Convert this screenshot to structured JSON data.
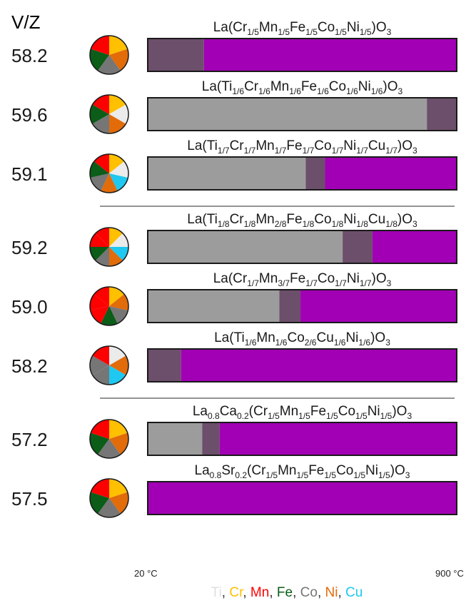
{
  "header": {
    "vz_label": "V/Z"
  },
  "element_colors": {
    "Ti": "#ebebeb",
    "Cr": "#ffc000",
    "Mn": "#ff0000",
    "Fe": "#0b5d18",
    "Co": "#767676",
    "Ni": "#e26b0a",
    "Cu": "#1ec8f0"
  },
  "phase_colors": [
    "#9c9c9c",
    "#6c4f6a",
    "#a100b4"
  ],
  "legend": [
    {
      "text": "Ti",
      "color": "#e0e0e0"
    },
    {
      "text": ", ",
      "color": "#333333"
    },
    {
      "text": "Cr",
      "color": "#ffc000"
    },
    {
      "text": ", ",
      "color": "#333333"
    },
    {
      "text": "Mn",
      "color": "#ff0000"
    },
    {
      "text": ", ",
      "color": "#333333"
    },
    {
      "text": "Fe",
      "color": "#0b5d18"
    },
    {
      "text": ", ",
      "color": "#333333"
    },
    {
      "text": "Co",
      "color": "#767676"
    },
    {
      "text": ", ",
      "color": "#333333"
    },
    {
      "text": "Ni",
      "color": "#e26b0a"
    },
    {
      "text": ", ",
      "color": "#333333"
    },
    {
      "text": "Cu",
      "color": "#1ec8f0"
    }
  ],
  "chart_data": {
    "type": "bar",
    "x_range": [
      20,
      900
    ],
    "x_tick_labels": [
      "20 °C",
      "900 °C"
    ],
    "groups": [
      {
        "separator_after": true,
        "rows": [
          {
            "vz": "58.2",
            "formula": [
              [
                "La(Cr",
                ""
              ],
              [
                "1/5",
                "sub"
              ],
              [
                "Mn",
                ""
              ],
              [
                "1/5",
                "sub"
              ],
              [
                "Fe",
                ""
              ],
              [
                "1/5",
                "sub"
              ],
              [
                "Co",
                ""
              ],
              [
                "1/5",
                "sub"
              ],
              [
                "Ni",
                ""
              ],
              [
                "1/5",
                "sub"
              ],
              [
                ")O",
                ""
              ],
              [
                "3",
                "sub"
              ]
            ],
            "pie": [
              "Cr",
              "Ni",
              "Co",
              "Fe",
              "Mn"
            ],
            "segments": [
              {
                "phase": 1,
                "from": 20,
                "to": 180
              },
              {
                "phase": 2,
                "from": 180,
                "to": 900
              }
            ]
          },
          {
            "vz": "59.6",
            "formula": [
              [
                "La(Ti",
                ""
              ],
              [
                "1/6",
                "sub"
              ],
              [
                "Cr",
                ""
              ],
              [
                "1/6",
                "sub"
              ],
              [
                "Mn",
                ""
              ],
              [
                "1/6",
                "sub"
              ],
              [
                "Fe",
                ""
              ],
              [
                "1/6",
                "sub"
              ],
              [
                "Co",
                ""
              ],
              [
                "1/6",
                "sub"
              ],
              [
                "Ni",
                ""
              ],
              [
                "1/6",
                "sub"
              ],
              [
                ")O",
                ""
              ],
              [
                "3",
                "sub"
              ]
            ],
            "pie": [
              "Cr",
              "Ti",
              "Ni",
              "Co",
              "Fe",
              "Mn"
            ],
            "segments": [
              {
                "phase": 0,
                "from": 20,
                "to": 815
              },
              {
                "phase": 1,
                "from": 815,
                "to": 900
              }
            ]
          },
          {
            "vz": "59.1",
            "formula": [
              [
                "La(Ti",
                ""
              ],
              [
                "1/7",
                "sub"
              ],
              [
                "Cr",
                ""
              ],
              [
                "1/7",
                "sub"
              ],
              [
                "Mn",
                ""
              ],
              [
                "1/7",
                "sub"
              ],
              [
                "Fe",
                ""
              ],
              [
                "1/7",
                "sub"
              ],
              [
                "Co",
                ""
              ],
              [
                "1/7",
                "sub"
              ],
              [
                "Ni",
                ""
              ],
              [
                "1/7",
                "sub"
              ],
              [
                "Cu",
                ""
              ],
              [
                "1/7",
                "sub"
              ],
              [
                ")O",
                ""
              ],
              [
                "3",
                "sub"
              ]
            ],
            "pie": [
              "Cr",
              "Ti",
              "Cu",
              "Ni",
              "Co",
              "Fe",
              "Mn"
            ],
            "segments": [
              {
                "phase": 0,
                "from": 20,
                "to": 470
              },
              {
                "phase": 1,
                "from": 470,
                "to": 525
              },
              {
                "phase": 2,
                "from": 525,
                "to": 900
              }
            ]
          }
        ]
      },
      {
        "separator_after": true,
        "rows": [
          {
            "vz": "59.2",
            "formula": [
              [
                "La(Ti",
                ""
              ],
              [
                "1/8",
                "sub"
              ],
              [
                "Cr",
                ""
              ],
              [
                "1/8",
                "sub"
              ],
              [
                "Mn",
                ""
              ],
              [
                "2/8",
                "sub"
              ],
              [
                "Fe",
                ""
              ],
              [
                "1/8",
                "sub"
              ],
              [
                "Co",
                ""
              ],
              [
                "1/8",
                "sub"
              ],
              [
                "Ni",
                ""
              ],
              [
                "1/8",
                "sub"
              ],
              [
                "Cu",
                ""
              ],
              [
                "1/8",
                "sub"
              ],
              [
                ")O",
                ""
              ],
              [
                "3",
                "sub"
              ]
            ],
            "pie": [
              "Cr",
              "Ti",
              "Cu",
              "Ni",
              "Co",
              "Fe",
              "Mn",
              "Mn"
            ],
            "segments": [
              {
                "phase": 0,
                "from": 20,
                "to": 575
              },
              {
                "phase": 1,
                "from": 575,
                "to": 660
              },
              {
                "phase": 2,
                "from": 660,
                "to": 900
              }
            ]
          },
          {
            "vz": "59.0",
            "formula": [
              [
                "La(Cr",
                ""
              ],
              [
                "1/7",
                "sub"
              ],
              [
                "Mn",
                ""
              ],
              [
                "3/7",
                "sub"
              ],
              [
                "Fe",
                ""
              ],
              [
                "1/7",
                "sub"
              ],
              [
                "Co",
                ""
              ],
              [
                "1/7",
                "sub"
              ],
              [
                "Ni",
                ""
              ],
              [
                "1/7",
                "sub"
              ],
              [
                ")O",
                ""
              ],
              [
                "3",
                "sub"
              ]
            ],
            "pie": [
              "Cr",
              "Ni",
              "Co",
              "Fe",
              "Mn",
              "Mn",
              "Mn"
            ],
            "segments": [
              {
                "phase": 0,
                "from": 20,
                "to": 395
              },
              {
                "phase": 1,
                "from": 395,
                "to": 455
              },
              {
                "phase": 2,
                "from": 455,
                "to": 900
              }
            ]
          },
          {
            "vz": "58.2",
            "formula": [
              [
                "La(Ti",
                ""
              ],
              [
                "1/6",
                "sub"
              ],
              [
                "Mn",
                ""
              ],
              [
                "1/6",
                "sub"
              ],
              [
                "Co",
                ""
              ],
              [
                "2/6",
                "sub"
              ],
              [
                "Cu",
                ""
              ],
              [
                "1/6",
                "sub"
              ],
              [
                "Ni",
                ""
              ],
              [
                "1/6",
                "sub"
              ],
              [
                ")O",
                ""
              ],
              [
                "3",
                "sub"
              ]
            ],
            "pie": [
              "Ti",
              "Ni",
              "Cu",
              "Co",
              "Co",
              "Mn"
            ],
            "segments": [
              {
                "phase": 1,
                "from": 20,
                "to": 115
              },
              {
                "phase": 2,
                "from": 115,
                "to": 900
              }
            ]
          }
        ]
      },
      {
        "separator_after": false,
        "rows": [
          {
            "vz": "57.2",
            "formula": [
              [
                "La",
                ""
              ],
              [
                "0.8",
                "sub"
              ],
              [
                "Ca",
                ""
              ],
              [
                "0.2",
                "sub"
              ],
              [
                "(Cr",
                ""
              ],
              [
                "1/5",
                "sub"
              ],
              [
                "Mn",
                ""
              ],
              [
                "1/5",
                "sub"
              ],
              [
                "Fe",
                ""
              ],
              [
                "1/5",
                "sub"
              ],
              [
                "Co",
                ""
              ],
              [
                "1/5",
                "sub"
              ],
              [
                "Ni",
                ""
              ],
              [
                "1/5",
                "sub"
              ],
              [
                ")O",
                ""
              ],
              [
                "3",
                "sub"
              ]
            ],
            "pie": [
              "Cr",
              "Ni",
              "Co",
              "Fe",
              "Mn"
            ],
            "segments": [
              {
                "phase": 0,
                "from": 20,
                "to": 175
              },
              {
                "phase": 1,
                "from": 175,
                "to": 225
              },
              {
                "phase": 2,
                "from": 225,
                "to": 900
              }
            ]
          },
          {
            "vz": "57.5",
            "formula": [
              [
                "La",
                ""
              ],
              [
                "0.8",
                "sub"
              ],
              [
                "Sr",
                ""
              ],
              [
                "0.2",
                "sub"
              ],
              [
                "(Cr",
                ""
              ],
              [
                "1/5",
                "sub"
              ],
              [
                "Mn",
                ""
              ],
              [
                "1/5",
                "sub"
              ],
              [
                "Fe",
                ""
              ],
              [
                "1/5",
                "sub"
              ],
              [
                "Co",
                ""
              ],
              [
                "1/5",
                "sub"
              ],
              [
                "Ni",
                ""
              ],
              [
                "1/5",
                "sub"
              ],
              [
                ")O",
                ""
              ],
              [
                "3",
                "sub"
              ]
            ],
            "pie": [
              "Cr",
              "Ni",
              "Co",
              "Fe",
              "Mn"
            ],
            "segments": [
              {
                "phase": 2,
                "from": 20,
                "to": 900
              }
            ]
          }
        ]
      }
    ]
  }
}
